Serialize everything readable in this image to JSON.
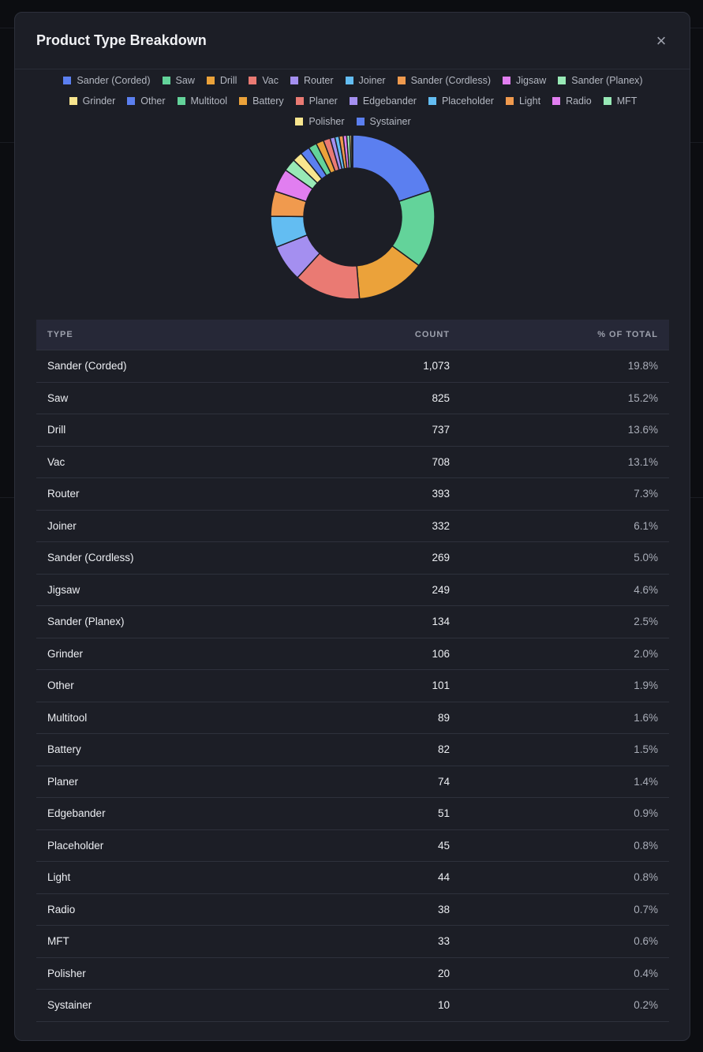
{
  "modal": {
    "title": "Product Type Breakdown",
    "close_label": "×"
  },
  "table": {
    "headers": [
      "TYPE",
      "COUNT",
      "% OF TOTAL"
    ]
  },
  "chart_data": {
    "type": "pie",
    "variant": "donut",
    "legend_position": "top",
    "categories": [
      "Sander (Corded)",
      "Saw",
      "Drill",
      "Vac",
      "Router",
      "Joiner",
      "Sander (Cordless)",
      "Jigsaw",
      "Sander (Planex)",
      "Grinder",
      "Other",
      "Multitool",
      "Battery",
      "Planer",
      "Edgebander",
      "Placeholder",
      "Light",
      "Radio",
      "MFT",
      "Polisher",
      "Systainer"
    ],
    "values": [
      1073,
      825,
      737,
      708,
      393,
      332,
      269,
      249,
      134,
      106,
      101,
      89,
      82,
      74,
      51,
      45,
      44,
      38,
      33,
      20,
      10
    ],
    "counts_display": [
      "1,073",
      "825",
      "737",
      "708",
      "393",
      "332",
      "269",
      "249",
      "134",
      "106",
      "101",
      "89",
      "82",
      "74",
      "51",
      "45",
      "44",
      "38",
      "33",
      "20",
      "10"
    ],
    "percents": [
      "19.8%",
      "15.2%",
      "13.6%",
      "13.1%",
      "7.3%",
      "6.1%",
      "5.0%",
      "4.6%",
      "2.5%",
      "2.0%",
      "1.9%",
      "1.6%",
      "1.5%",
      "1.4%",
      "0.9%",
      "0.8%",
      "0.8%",
      "0.7%",
      "0.6%",
      "0.4%",
      "0.2%"
    ],
    "colors": [
      "#5b7ff0",
      "#63d39a",
      "#eba23a",
      "#ea7a73",
      "#a48ff0",
      "#63bdf2",
      "#f09a4e",
      "#e17ef0",
      "#98e9b6",
      "#f8e58e",
      "#5b7ff0",
      "#63d39a",
      "#eba23a",
      "#ea7a73",
      "#a48ff0",
      "#63bdf2",
      "#f09a4e",
      "#e17ef0",
      "#98e9b6",
      "#f8e58e",
      "#5b7ff0"
    ]
  }
}
